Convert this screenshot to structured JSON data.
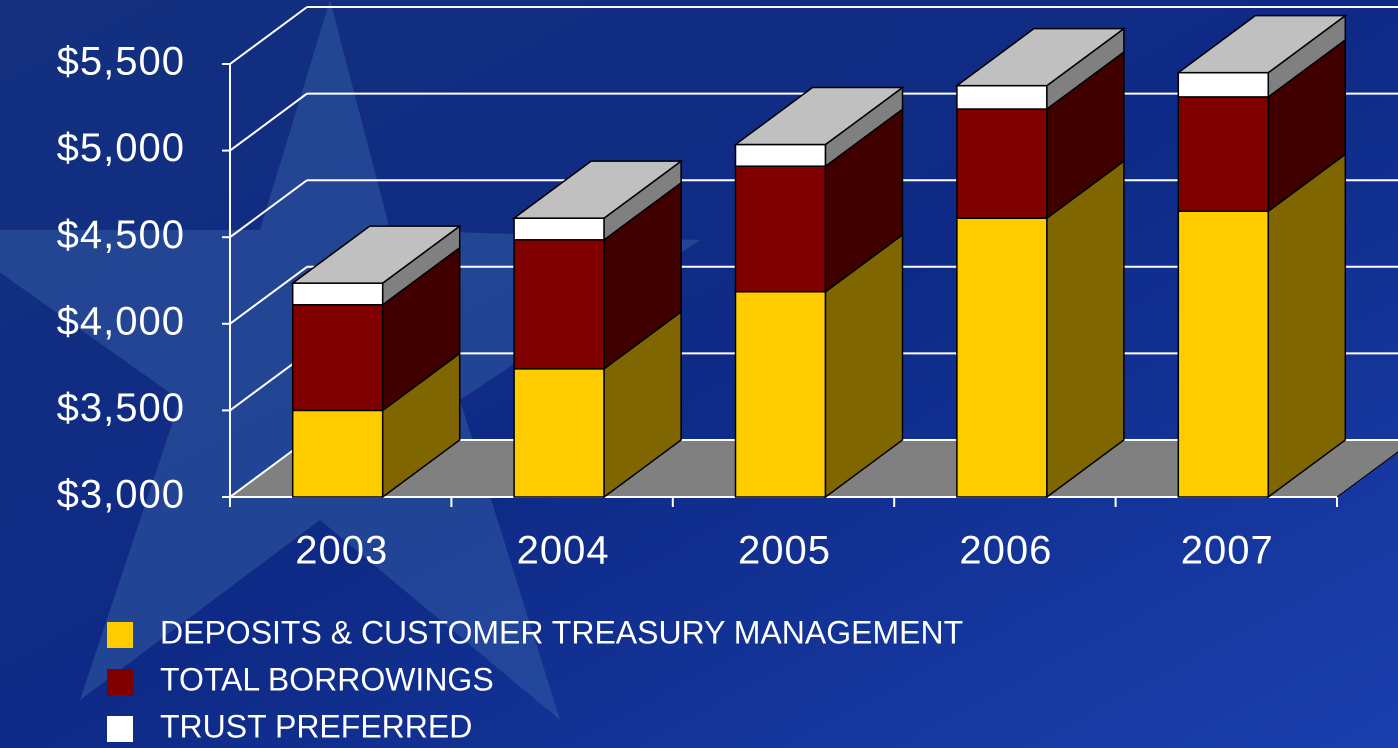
{
  "chart_data": {
    "type": "bar3d_stacked",
    "categories": [
      "2003",
      "2004",
      "2005",
      "2006",
      "2007"
    ],
    "series": [
      {
        "name": "DEPOSITS & CUSTOMER TREASURY MANAGEMENT",
        "color": "#ffcc00",
        "side": "#806600",
        "values": [
          3500,
          3740,
          4185,
          4610,
          4650
        ]
      },
      {
        "name": "TOTAL BORROWINGS",
        "color": "#800000",
        "side": "#400000",
        "values": [
          610,
          745,
          725,
          630,
          660
        ]
      },
      {
        "name": "TRUST PREFERRED",
        "color": "#ffffff",
        "side": "#808080",
        "values": [
          125,
          125,
          125,
          135,
          140
        ]
      }
    ],
    "ylim": [
      3000,
      5500
    ],
    "yticks": [
      {
        "value": 3000,
        "label": "$3,000"
      },
      {
        "value": 3500,
        "label": "$3,500"
      },
      {
        "value": 4000,
        "label": "$4,000"
      },
      {
        "value": 4500,
        "label": "$4,500"
      },
      {
        "value": 5000,
        "label": "$5,000"
      },
      {
        "value": 5500,
        "label": "$5,500"
      }
    ],
    "grid": true
  }
}
